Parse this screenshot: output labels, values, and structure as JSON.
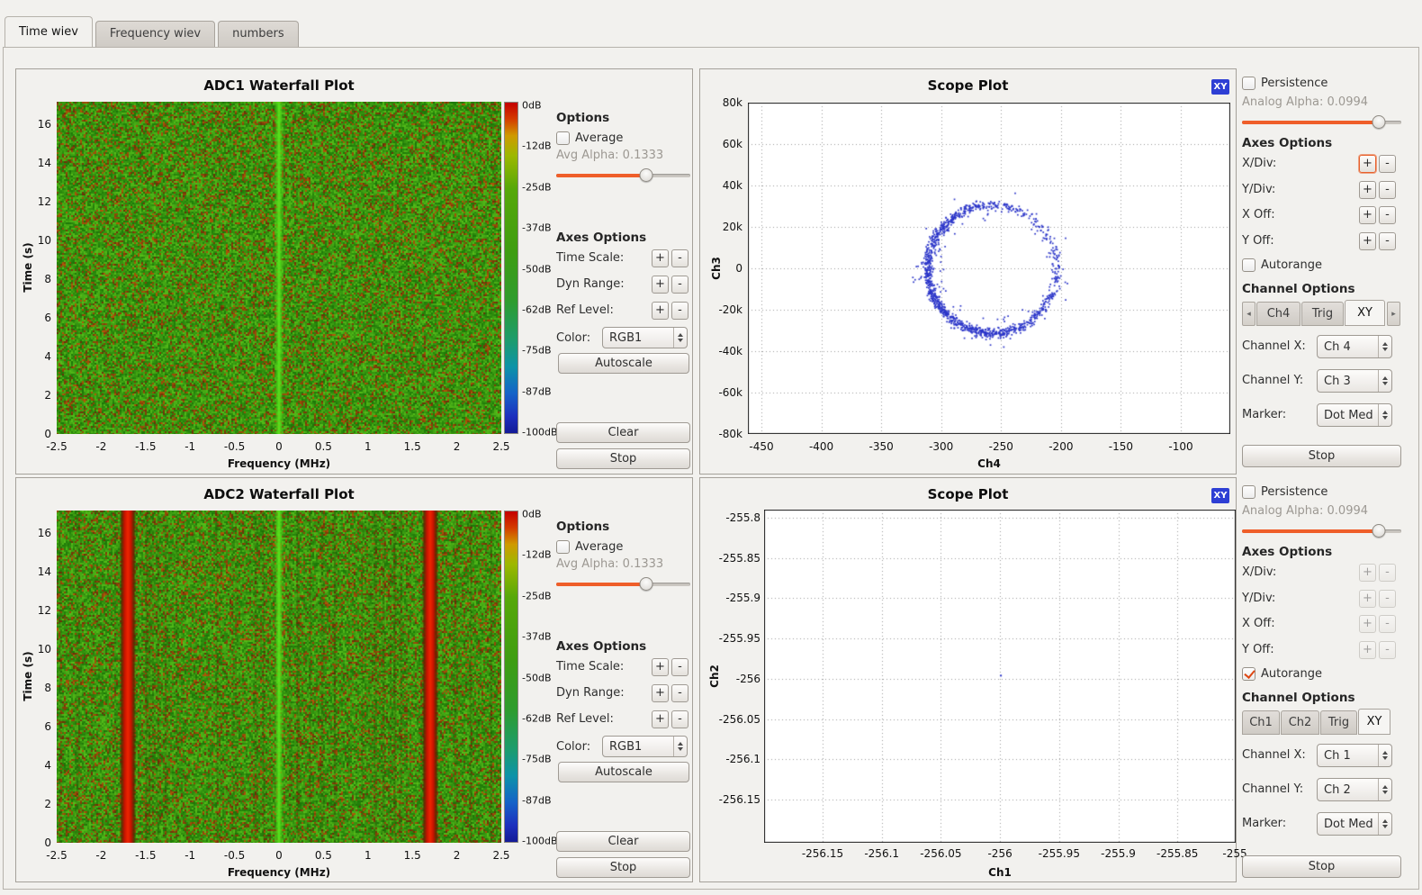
{
  "tabs": [
    {
      "label": "Time wiev",
      "active": true
    },
    {
      "label": "Frequency wiev",
      "active": false
    },
    {
      "label": "numbers",
      "active": false
    }
  ],
  "ui": {
    "plus": "+",
    "minus": "-",
    "scroll_left": "◂",
    "scroll_right": "▸"
  },
  "colors": {
    "accent_orange": "#ef5e29",
    "badge_blue": "#2e3fd4",
    "scatter_blue": "#2b35c9",
    "check_orange": "#dd4814"
  },
  "waterfall_options": {
    "options_header": "Options",
    "average_label": "Average",
    "average_checked": false,
    "avg_alpha_label": "Avg Alpha: 0.1333",
    "axes_header": "Axes Options",
    "time_scale_label": "Time Scale:",
    "dyn_range_label": "Dyn Range:",
    "ref_level_label": "Ref Level:",
    "color_label": "Color:",
    "color_value": "RGB1",
    "autoscale_label": "Autoscale",
    "clear_label": "Clear",
    "stop_label": "Stop"
  },
  "waterfall1": {
    "title": "ADC1 Waterfall Plot",
    "xlabel": "Frequency (MHz)",
    "ylabel": "Time (s)",
    "x_range_mhz": [
      -2.5,
      2.5
    ],
    "x_ticks": [
      "-2.5",
      "-2",
      "-1.5",
      "-1",
      "-0.5",
      "0",
      "0.5",
      "1",
      "1.5",
      "2",
      "2.5"
    ],
    "y_ticks": [
      "16",
      "14",
      "12",
      "10",
      "8",
      "6",
      "4",
      "2",
      "0"
    ],
    "colorbar_labels": [
      "0dB",
      "-12dB",
      "-25dB",
      "-37dB",
      "-50dB",
      "-62dB",
      "-75dB",
      "-87dB",
      "-100dB"
    ],
    "center_line_mhz": 0,
    "red_stripes_mhz": [],
    "striations": false,
    "seed": 1337
  },
  "waterfall2": {
    "title": "ADC2 Waterfall Plot",
    "xlabel": "Frequency (MHz)",
    "ylabel": "Time (s)",
    "x_range_mhz": [
      -2.5,
      2.5
    ],
    "x_ticks": [
      "-2.5",
      "-2",
      "-1.5",
      "-1",
      "-0.5",
      "0",
      "0.5",
      "1",
      "1.5",
      "2",
      "2.5"
    ],
    "y_ticks": [
      "16",
      "14",
      "12",
      "10",
      "8",
      "6",
      "4",
      "2",
      "0"
    ],
    "colorbar_labels": [
      "0dB",
      "-12dB",
      "-25dB",
      "-37dB",
      "-50dB",
      "-62dB",
      "-75dB",
      "-87dB",
      "-100dB"
    ],
    "center_line_mhz": 0,
    "red_stripes_mhz": [
      -1.7,
      1.7
    ],
    "striations": true,
    "seed": 8421
  },
  "scope1": {
    "title": "Scope Plot",
    "badge": "XY",
    "xlabel": "Ch4",
    "ylabel": "Ch3",
    "x_ticks": [
      "-450",
      "-400",
      "-350",
      "-300",
      "-250",
      "-200",
      "-150",
      "-100"
    ],
    "y_ticks": [
      "80k",
      "60k",
      "40k",
      "20k",
      "0",
      "-20k",
      "-40k",
      "-60k",
      "-80k"
    ],
    "dot_color": "#2b35c9",
    "scatter": {
      "type": "ring",
      "center": {
        "x": -258,
        "y": 0
      },
      "radius": {
        "x": 54,
        "y": 31000
      },
      "points": 1250,
      "seed": 91
    }
  },
  "scope2": {
    "title": "Scope Plot",
    "badge": "XY",
    "xlabel": "Ch1",
    "ylabel": "Ch2",
    "x_ticks": [
      "-256.15",
      "-256.1",
      "-256.05",
      "-256",
      "-255.95",
      "-255.9",
      "-255.85",
      "-255."
    ],
    "y_ticks": [
      "-255.8",
      "-255.85",
      "-255.9",
      "-255.95",
      "-256",
      "-256.05",
      "-256.1",
      "-256.15"
    ],
    "dot_color": "#2b35c9",
    "scatter": {
      "type": "dot",
      "x": -256.0,
      "y": -255.995
    }
  },
  "scope1_panel": {
    "persistence_label": "Persistence",
    "persistence_checked": false,
    "analog_alpha_label": "Analog Alpha: 0.0994",
    "axes_header": "Axes Options",
    "xdiv_label": "X/Div:",
    "ydiv_label": "Y/Div:",
    "xoff_label": "X Off:",
    "yoff_label": "Y Off:",
    "autorange_label": "Autorange",
    "autorange_checked": false,
    "channel_header": "Channel Options",
    "channel_tabs": [
      "Ch4",
      "Trig",
      "XY"
    ],
    "active_channel_tab": "XY",
    "channel_x_label": "Channel X:",
    "channel_x_value": "Ch 4",
    "channel_y_label": "Channel Y:",
    "channel_y_value": "Ch 3",
    "marker_label": "Marker:",
    "marker_value": "Dot Med",
    "stop_label": "Stop"
  },
  "scope2_panel": {
    "persistence_label": "Persistence",
    "persistence_checked": false,
    "analog_alpha_label": "Analog Alpha: 0.0994",
    "axes_header": "Axes Options",
    "xdiv_label": "X/Div:",
    "ydiv_label": "Y/Div:",
    "xoff_label": "X Off:",
    "yoff_label": "Y Off:",
    "autorange_label": "Autorange",
    "autorange_checked": true,
    "channel_header": "Channel Options",
    "channel_tabs": [
      "Ch1",
      "Ch2",
      "Trig",
      "XY"
    ],
    "active_channel_tab": "XY",
    "channel_x_label": "Channel X:",
    "channel_x_value": "Ch 1",
    "channel_y_label": "Channel Y:",
    "channel_y_value": "Ch 2",
    "marker_label": "Marker:",
    "marker_value": "Dot Med",
    "stop_label": "Stop"
  }
}
